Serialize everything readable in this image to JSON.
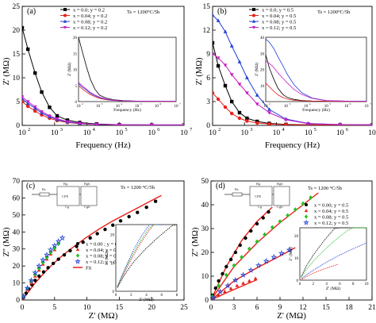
{
  "chart_data": [
    {
      "panel": "(a)",
      "type": "line",
      "condition": "Ts = 1200°C/5h",
      "xlabel": "Frequency (Hz)",
      "ylabel": "Z' (MΩ)",
      "xscale": "log",
      "xlim": [
        100,
        10000000
      ],
      "ylim": [
        0,
        25
      ],
      "xticks": [
        "10",
        "10",
        "10",
        "10",
        "10",
        "10"
      ],
      "xtick_exp": [
        "2",
        "3",
        "4",
        "5",
        "6",
        "7"
      ],
      "yticks": [
        "0",
        "5",
        "10",
        "15",
        "20",
        "25"
      ],
      "legend": [
        "x = 0.0; y = 0.2",
        "x = 0.04; y = 0.2",
        "x = 0.08; y = 0.2",
        "x = 0.12; y = 0.2"
      ],
      "legend_position": "top-center",
      "colors": [
        "#000000",
        "#e8201a",
        "#1f3fd6",
        "#c81ec8"
      ],
      "markers": [
        "square",
        "circle",
        "triangle",
        "triangle-down"
      ],
      "series": [
        {
          "x": [
            100,
            150,
            250,
            400,
            700,
            1200,
            2500,
            6000,
            20000,
            100000,
            1000000,
            10000000
          ],
          "values": [
            20.5,
            16,
            11,
            7,
            3.8,
            2,
            1.1,
            0.6,
            0.3,
            0.15,
            0.1,
            0.1
          ]
        },
        {
          "x": [
            100,
            150,
            250,
            400,
            700,
            1200,
            2500,
            6000,
            20000,
            100000,
            1000000,
            10000000
          ],
          "values": [
            5,
            4,
            3,
            2.2,
            1.5,
            1,
            0.6,
            0.35,
            0.2,
            0.1,
            0.08,
            0.08
          ]
        },
        {
          "x": [
            100,
            150,
            250,
            400,
            700,
            1200,
            2500,
            6000,
            20000,
            100000,
            1000000,
            10000000
          ],
          "values": [
            5.6,
            4.6,
            3.6,
            2.6,
            1.8,
            1.2,
            0.7,
            0.4,
            0.2,
            0.12,
            0.1,
            0.1
          ]
        },
        {
          "x": [
            100,
            150,
            250,
            400,
            700,
            1200,
            2500,
            6000,
            20000,
            100000,
            1000000,
            10000000
          ],
          "values": [
            6,
            5,
            3.9,
            2.9,
            2,
            1.4,
            0.8,
            0.45,
            0.22,
            0.12,
            0.1,
            0.1
          ]
        }
      ],
      "inset": {
        "xlabel": "Frequency (Hz)",
        "ylabel": "Z' (MΩ)",
        "xtick_exp": [
          "2",
          "3",
          "4",
          "5",
          "6",
          "7"
        ],
        "yticks": [
          "0",
          "5",
          "10",
          "15",
          "20"
        ],
        "ylim": [
          0,
          20
        ]
      }
    },
    {
      "panel": "(b)",
      "type": "line",
      "condition": "Ts = 1200°C/5h",
      "xlabel": "Frequency (Hz)",
      "ylabel": "Z' (MΩ)",
      "xscale": "log",
      "xlim": [
        100,
        10000000
      ],
      "ylim": [
        0,
        15
      ],
      "xticks": [
        "10",
        "10",
        "10",
        "10",
        "10",
        "10"
      ],
      "xtick_exp": [
        "2",
        "3",
        "4",
        "5",
        "6",
        "7"
      ],
      "yticks": [
        "0",
        "3",
        "6",
        "9",
        "12",
        "15"
      ],
      "legend": [
        "x = 0.0; y = 0.5",
        "x = 0.04; y = 0.5",
        "x = 0.08; y = 0.5",
        "x = 0.12; y = 0.5"
      ],
      "legend_position": "top-center",
      "colors": [
        "#000000",
        "#e8201a",
        "#1f3fd6",
        "#c81ec8"
      ],
      "markers": [
        "square",
        "circle",
        "triangle",
        "triangle-down"
      ],
      "series": [
        {
          "x": [
            100,
            150,
            250,
            400,
            700,
            1200,
            2500,
            6000,
            20000,
            100000,
            1000000,
            10000000
          ],
          "values": [
            10.4,
            7.5,
            5,
            3,
            1.6,
            0.9,
            0.5,
            0.25,
            0.12,
            0.08,
            0.06,
            0.06
          ]
        },
        {
          "x": [
            100,
            150,
            250,
            400,
            700,
            1200,
            2500,
            6000,
            20000,
            100000,
            1000000,
            10000000
          ],
          "values": [
            4.1,
            3.3,
            2.3,
            1.5,
            0.9,
            0.55,
            0.3,
            0.18,
            0.1,
            0.07,
            0.06,
            0.06
          ]
        },
        {
          "x": [
            100,
            150,
            250,
            400,
            700,
            1200,
            2500,
            6000,
            20000,
            100000,
            1000000,
            10000000
          ],
          "values": [
            13.9,
            13.2,
            11.8,
            10,
            8,
            6,
            3.8,
            2,
            0.8,
            0.25,
            0.1,
            0.08
          ]
        },
        {
          "x": [
            100,
            150,
            250,
            400,
            700,
            1200,
            2500,
            6000,
            20000,
            100000,
            1000000,
            10000000
          ],
          "values": [
            9,
            8.5,
            7.6,
            6.4,
            5.2,
            4.1,
            2.7,
            1.6,
            0.7,
            0.22,
            0.1,
            0.08
          ]
        }
      ],
      "inset": {
        "xlabel": "Frequency (Hz)",
        "ylabel": "Z' (MΩ)",
        "xtick_exp": [
          "2",
          "3",
          "4",
          "5",
          "6",
          "7"
        ],
        "yticks": [
          "0",
          "10",
          "20",
          "30",
          "40"
        ],
        "ylim": [
          0,
          40
        ]
      }
    },
    {
      "panel": "(c)",
      "type": "scatter",
      "condition": "Ts = 1200 °C/5h",
      "xlabel": "Z' (MΩ)",
      "ylabel": "Z'' (MΩ)",
      "xlim": [
        0,
        25
      ],
      "ylim": [
        0,
        70
      ],
      "xticks": [
        "0",
        "5",
        "10",
        "15",
        "20",
        "25"
      ],
      "yticks": [
        "0",
        "10",
        "20",
        "30",
        "40",
        "50",
        "60",
        "70"
      ],
      "legend": [
        "x = 0.00 ; y = 0.2",
        "x = 0.04; y = 0.2",
        "x = 0.08; y = 0.2",
        "x = 0.12; y = 0.2",
        "Fit"
      ],
      "legend_position": "center",
      "colors": [
        "#000000",
        "#e8201a",
        "#25c025",
        "#1f3fd6",
        "#e8201a"
      ],
      "markers": [
        "circle",
        "triangle",
        "diamond",
        "star",
        "line"
      ],
      "series": [
        {
          "x": [
            0.2,
            0.6,
            1.0,
            1.5,
            2.0,
            2.6,
            3.3,
            4.0,
            4.8,
            5.6,
            6.5,
            7.4,
            8.4,
            9.4,
            10.5,
            11.6,
            12.8,
            14.0,
            15.2,
            16.5,
            17.8,
            19.2,
            20.6
          ],
          "values": [
            1.5,
            4,
            6.5,
            9,
            11.5,
            14,
            16.5,
            19,
            21.5,
            24,
            26.5,
            29,
            31.5,
            34,
            36.5,
            39,
            41.5,
            44,
            46.5,
            49,
            51.5,
            54.5,
            58
          ]
        },
        {
          "x": [
            0.2,
            0.8,
            1.4,
            2.0,
            2.6,
            3.2,
            3.8,
            4.4,
            5.0
          ],
          "values": [
            2,
            6,
            10,
            14,
            17.5,
            21,
            24,
            27,
            29.5
          ]
        },
        {
          "x": [
            0.2,
            0.8,
            1.4,
            2.0,
            2.6,
            3.2,
            3.8,
            4.4,
            5.0,
            5.6
          ],
          "values": [
            2,
            6.5,
            11,
            15,
            18.5,
            22,
            25,
            28,
            30.5,
            33
          ]
        },
        {
          "x": [
            0.2,
            0.8,
            1.4,
            2.0,
            2.6,
            3.2,
            3.8,
            4.4,
            5.0,
            5.6,
            6.2
          ],
          "values": [
            2.2,
            7,
            11.5,
            16,
            20,
            23.5,
            26.5,
            29.5,
            32,
            34.5,
            36.5
          ]
        }
      ],
      "fit": {
        "x": [
          0,
          2,
          4,
          6,
          8,
          10,
          12,
          14,
          16,
          18,
          20,
          21.5
        ],
        "values": [
          0,
          10,
          18.5,
          25.5,
          31.5,
          37,
          42,
          46.5,
          50.5,
          54.5,
          58.5,
          61.5
        ]
      },
      "equivalent_circuit": [
        "Rs",
        "Rg",
        "CPE",
        "Cg",
        "Rgb",
        "Cgb"
      ],
      "inset": {
        "xlabel": "Z' (MΩ)",
        "ylabel": "Z'' (MΩ)",
        "xticks": [
          "0",
          "2",
          "4",
          "6",
          "8"
        ],
        "yticks": [
          "0",
          "10",
          "20"
        ],
        "xlim": [
          0,
          8
        ],
        "ylim": [
          0,
          25
        ]
      }
    },
    {
      "panel": "(d)",
      "type": "scatter",
      "condition": "Ts = 1200 °C/5h",
      "xlabel": "Z' (MΩ)",
      "ylabel": "Z'' (MΩ)",
      "xlim": [
        0,
        21
      ],
      "ylim": [
        0,
        50
      ],
      "xticks": [
        "0",
        "3",
        "6",
        "9",
        "12",
        "15",
        "18",
        "21"
      ],
      "yticks": [
        "0",
        "10",
        "20",
        "30",
        "40",
        "50"
      ],
      "legend": [
        "x = 0.00; y = 0.5",
        "x = 0.04; y = 0.5",
        "x = 0.08; y = 0.5",
        "x = 0.12; y = 0.5",
        "Fit"
      ],
      "legend_position": "right",
      "colors": [
        "#000000",
        "#e8201a",
        "#25c025",
        "#1f3fd6",
        "#e8201a"
      ],
      "markers": [
        "circle",
        "triangle",
        "diamond",
        "star",
        "line"
      ],
      "series": [
        {
          "x": [
            0.2,
            0.6,
            1.0,
            1.5,
            2.0,
            2.6,
            3.2,
            3.8,
            4.5,
            5.2,
            6.0,
            6.8,
            7.5
          ],
          "values": [
            2,
            5,
            8,
            11,
            14,
            17,
            20,
            23,
            26,
            29,
            32,
            34.5,
            37
          ]
        },
        {
          "x": [
            0.3,
            1.0,
            1.8,
            2.6,
            3.4,
            4.2,
            5.0,
            5.8
          ],
          "values": [
            0.5,
            2,
            3.5,
            4.8,
            6,
            7,
            8,
            9
          ]
        },
        {
          "x": [
            0.2,
            1.0,
            2.0,
            3.0,
            4.0,
            5.0,
            6.0,
            7.0,
            8.0,
            9.0,
            10.0,
            11.0,
            12.0,
            13.0
          ],
          "values": [
            1.5,
            6,
            10.5,
            14.5,
            18,
            21.5,
            24.5,
            27.5,
            30.5,
            33,
            35.5,
            38,
            40.5,
            43
          ]
        },
        {
          "x": [
            0.3,
            1.2,
            2.2,
            3.2,
            4.2,
            5.2,
            6.2,
            7.2,
            8.2,
            9.2,
            10.2
          ],
          "values": [
            1,
            3.5,
            6,
            8.3,
            10.5,
            12.5,
            14.5,
            16.3,
            18,
            19.6,
            21
          ]
        }
      ],
      "fits": [
        {
          "x": [
            0,
            2,
            4,
            6,
            8
          ],
          "values": [
            0,
            14,
            25,
            33,
            39
          ]
        },
        {
          "x": [
            0,
            2,
            4,
            6
          ],
          "values": [
            0,
            3,
            5.8,
            8.5
          ]
        },
        {
          "x": [
            0,
            3,
            6,
            9,
            12,
            14
          ],
          "values": [
            0,
            14,
            24,
            32.5,
            40,
            45
          ]
        },
        {
          "x": [
            0,
            3,
            6,
            9,
            11
          ],
          "values": [
            0,
            8,
            13.5,
            18.5,
            22
          ]
        }
      ],
      "equivalent_circuit": [
        "Rs",
        "Rg",
        "CPE",
        "Cg",
        "Rgb",
        "Cgb"
      ],
      "inset": {
        "xlabel": "Z' (MΩ)",
        "ylabel": "Z'' (MΩ)",
        "xticks": [
          "0",
          "2",
          "4",
          "6",
          "8",
          "10"
        ],
        "yticks": [
          "0",
          "10",
          "20"
        ]
      }
    }
  ]
}
